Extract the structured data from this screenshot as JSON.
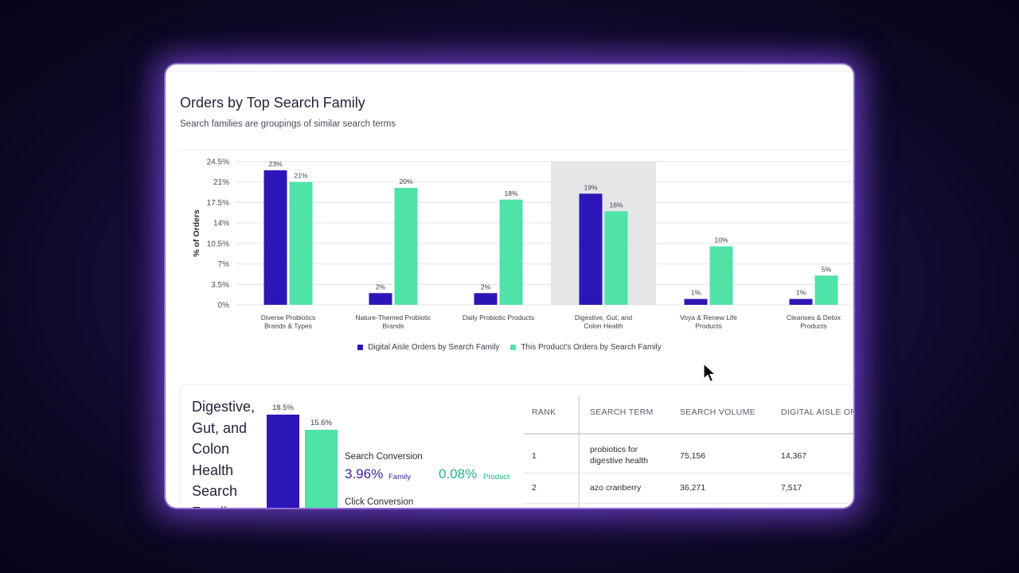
{
  "page": {
    "title": "Orders by Top Search Family",
    "subtitle": "Search families are groupings of similar search terms"
  },
  "colors": {
    "series1": "#2d16b8",
    "series2": "#4fe3a8",
    "highlight": "#e5e6e8",
    "accent_text": "#3a1ea0",
    "product_text": "#1fb58a"
  },
  "chart_data": {
    "type": "bar",
    "ylabel": "% of Orders",
    "ylim": [
      0,
      24.5
    ],
    "yticks": [
      "24.5%",
      "21%",
      "17.5%",
      "14%",
      "10.5%",
      "7%",
      "3.5%",
      "0%"
    ],
    "ytick_values": [
      24.5,
      21,
      17.5,
      14,
      10.5,
      7,
      3.5,
      0
    ],
    "categories": [
      [
        "Diverse Probiotics",
        "Brands & Types"
      ],
      [
        "Nature-Themed Probiotic",
        "Brands"
      ],
      [
        "Daily Probiotic Products"
      ],
      [
        "Digestive, Gut, and",
        "Colon Health"
      ],
      [
        "Voya & Renew Life",
        "Products"
      ],
      [
        "Cleanses & Detox",
        "Products"
      ]
    ],
    "highlighted_category": 3,
    "series": [
      {
        "name": "Digital Aisle Orders by Search Family",
        "values": [
          23,
          2,
          2,
          19,
          1,
          1
        ],
        "labels": [
          "23%",
          "2%",
          "2%",
          "19%",
          "1%",
          "1%"
        ]
      },
      {
        "name": "This Product's Orders by Search Family",
        "values": [
          21,
          20,
          18,
          16,
          10,
          5
        ],
        "labels": [
          "21%",
          "20%",
          "18%",
          "16%",
          "10%",
          "5%"
        ]
      }
    ],
    "grid": true,
    "legend": "bottom"
  },
  "detail": {
    "title_lines": [
      "Digestive,",
      "Gut, and",
      "Colon",
      "Health",
      "Search",
      "Family"
    ],
    "mini_bars": [
      {
        "label": "18.5%",
        "value": 18.5
      },
      {
        "label": "15.6%",
        "value": 15.6
      }
    ],
    "search_conversion_label": "Search Conversion",
    "search_family_value": "3.96%",
    "family_unit": "Family",
    "search_product_value": "0.08%",
    "product_unit": "Product",
    "click_conversion_label": "Click Conversion"
  },
  "table": {
    "headers": [
      "RANK",
      "SEARCH TERM",
      "SEARCH VOLUME",
      "DIGITAL AISLE ORDERS"
    ],
    "rows": [
      {
        "rank": "1",
        "term_lines": [
          "probiotics for",
          "digestive health"
        ],
        "volume": "75,156",
        "da": "14,367"
      },
      {
        "rank": "2",
        "term_lines": [
          "azo cranberry"
        ],
        "volume": "36,271",
        "da": "7,517"
      }
    ]
  }
}
